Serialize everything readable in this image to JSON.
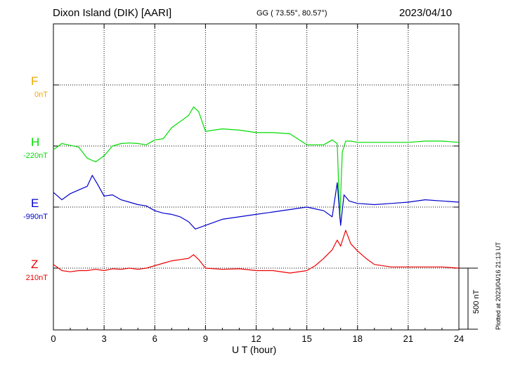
{
  "header": {
    "title": "Dixon Island (DIK)  [AARI]",
    "coords": "GG ( 73.55°,  80.57°)",
    "date": "2023/04/10"
  },
  "footer": {
    "xlabel": "U T (hour)",
    "plotted": "Plotted at 2023/04/16 21:13 UT",
    "scale_label": "500 nT"
  },
  "components": [
    {
      "letter": "F",
      "baseline": "0nT",
      "color": "#f0a800"
    },
    {
      "letter": "H",
      "baseline": "-220nT",
      "color": "#00dd00"
    },
    {
      "letter": "E",
      "baseline": "-990nT",
      "color": "#0000cc"
    },
    {
      "letter": "Z",
      "baseline": "210nT",
      "color": "#ee0000"
    }
  ],
  "chart_data": {
    "type": "line",
    "xlabel": "U T (hour)",
    "xlim": [
      0,
      24
    ],
    "x_ticks": [
      "0",
      "3",
      "6",
      "9",
      "12",
      "15",
      "18",
      "21",
      "24"
    ],
    "scale_bar_nT": 500,
    "grid": true,
    "series": [
      {
        "name": "H",
        "color": "#00dd00",
        "baseline_nT": -220,
        "x": [
          0,
          0.5,
          1,
          1.5,
          2,
          2.5,
          3,
          3.5,
          4,
          4.5,
          5,
          5.5,
          6,
          6.5,
          7,
          7.5,
          8,
          8.3,
          8.6,
          9,
          9.5,
          10,
          11,
          12,
          13,
          14,
          15,
          16,
          16.5,
          16.8,
          16.95,
          17.1,
          17.3,
          17.6,
          18,
          19,
          20,
          21,
          22,
          23,
          24
        ],
        "y": [
          -30,
          20,
          5,
          -10,
          -100,
          -130,
          -80,
          0,
          20,
          25,
          20,
          10,
          50,
          60,
          150,
          200,
          250,
          320,
          280,
          120,
          130,
          140,
          130,
          110,
          110,
          100,
          10,
          10,
          50,
          20,
          -600,
          -50,
          40,
          40,
          30,
          30,
          30,
          30,
          40,
          40,
          30
        ]
      },
      {
        "name": "E",
        "color": "#0000cc",
        "baseline_nT": -990,
        "x": [
          0,
          0.5,
          1,
          1.5,
          2,
          2.3,
          2.6,
          3,
          3.5,
          4,
          4.5,
          5,
          5.5,
          6,
          6.5,
          7,
          7.5,
          8,
          8.4,
          9,
          10,
          11,
          12,
          13,
          14,
          15,
          16,
          16.5,
          16.8,
          17.0,
          17.2,
          17.5,
          18,
          19,
          20,
          21,
          22,
          23,
          24
        ],
        "y": [
          120,
          60,
          110,
          140,
          170,
          260,
          190,
          90,
          100,
          60,
          40,
          20,
          10,
          -30,
          -50,
          -60,
          -80,
          -120,
          -180,
          -150,
          -100,
          -80,
          -60,
          -40,
          -20,
          0,
          -30,
          -80,
          200,
          -150,
          100,
          50,
          30,
          20,
          30,
          40,
          60,
          50,
          40
        ]
      },
      {
        "name": "Z",
        "color": "#ee0000",
        "baseline_nT": 210,
        "x": [
          0,
          0.5,
          1,
          1.5,
          2,
          2.5,
          3,
          3.5,
          4,
          4.5,
          5,
          5.5,
          6,
          6.5,
          7,
          7.5,
          8,
          8.3,
          8.6,
          9,
          10,
          11,
          12,
          13,
          14,
          15,
          15.5,
          16,
          16.5,
          16.8,
          17,
          17.3,
          17.6,
          18,
          18.5,
          19,
          20,
          21,
          22,
          23,
          24
        ],
        "y": [
          30,
          -20,
          -30,
          -20,
          -20,
          -10,
          -20,
          -5,
          -10,
          0,
          -10,
          0,
          20,
          40,
          60,
          70,
          80,
          110,
          70,
          0,
          -10,
          -5,
          -20,
          -20,
          -40,
          -20,
          20,
          80,
          150,
          230,
          180,
          310,
          200,
          140,
          80,
          30,
          10,
          10,
          10,
          10,
          0
        ]
      }
    ]
  }
}
